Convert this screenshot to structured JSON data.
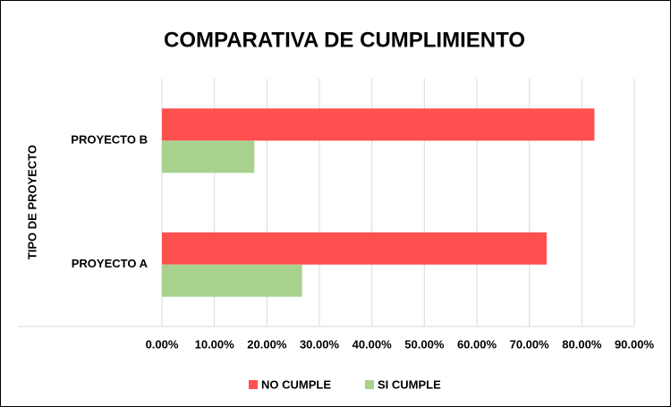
{
  "chart_data": {
    "type": "barh",
    "title": "COMPARATIVA DE CUMPLIMIENTO",
    "y_label": "TIPO DE PROYECTO",
    "categories": [
      "PROYECTO A",
      "PROYECTO B"
    ],
    "series": [
      {
        "name": "NO CUMPLE",
        "color": "#ff5050",
        "values": [
          73.3,
          82.4
        ]
      },
      {
        "name": "SI CUMPLE",
        "color": "#a9d18e",
        "values": [
          26.7,
          17.6
        ]
      }
    ],
    "xlim": [
      0,
      90
    ],
    "xticks": [
      {
        "value": 0,
        "label": "0.00%"
      },
      {
        "value": 10,
        "label": "10.00%"
      },
      {
        "value": 20,
        "label": "20.00%"
      },
      {
        "value": 30,
        "label": "30.00%"
      },
      {
        "value": 40,
        "label": "40.00%"
      },
      {
        "value": 50,
        "label": "50.00%"
      },
      {
        "value": 60,
        "label": "60.00%"
      },
      {
        "value": 70,
        "label": "70.00%"
      },
      {
        "value": 80,
        "label": "80.00%"
      },
      {
        "value": 90,
        "label": "90.00%"
      }
    ],
    "grid": true,
    "legend": "bottom"
  }
}
